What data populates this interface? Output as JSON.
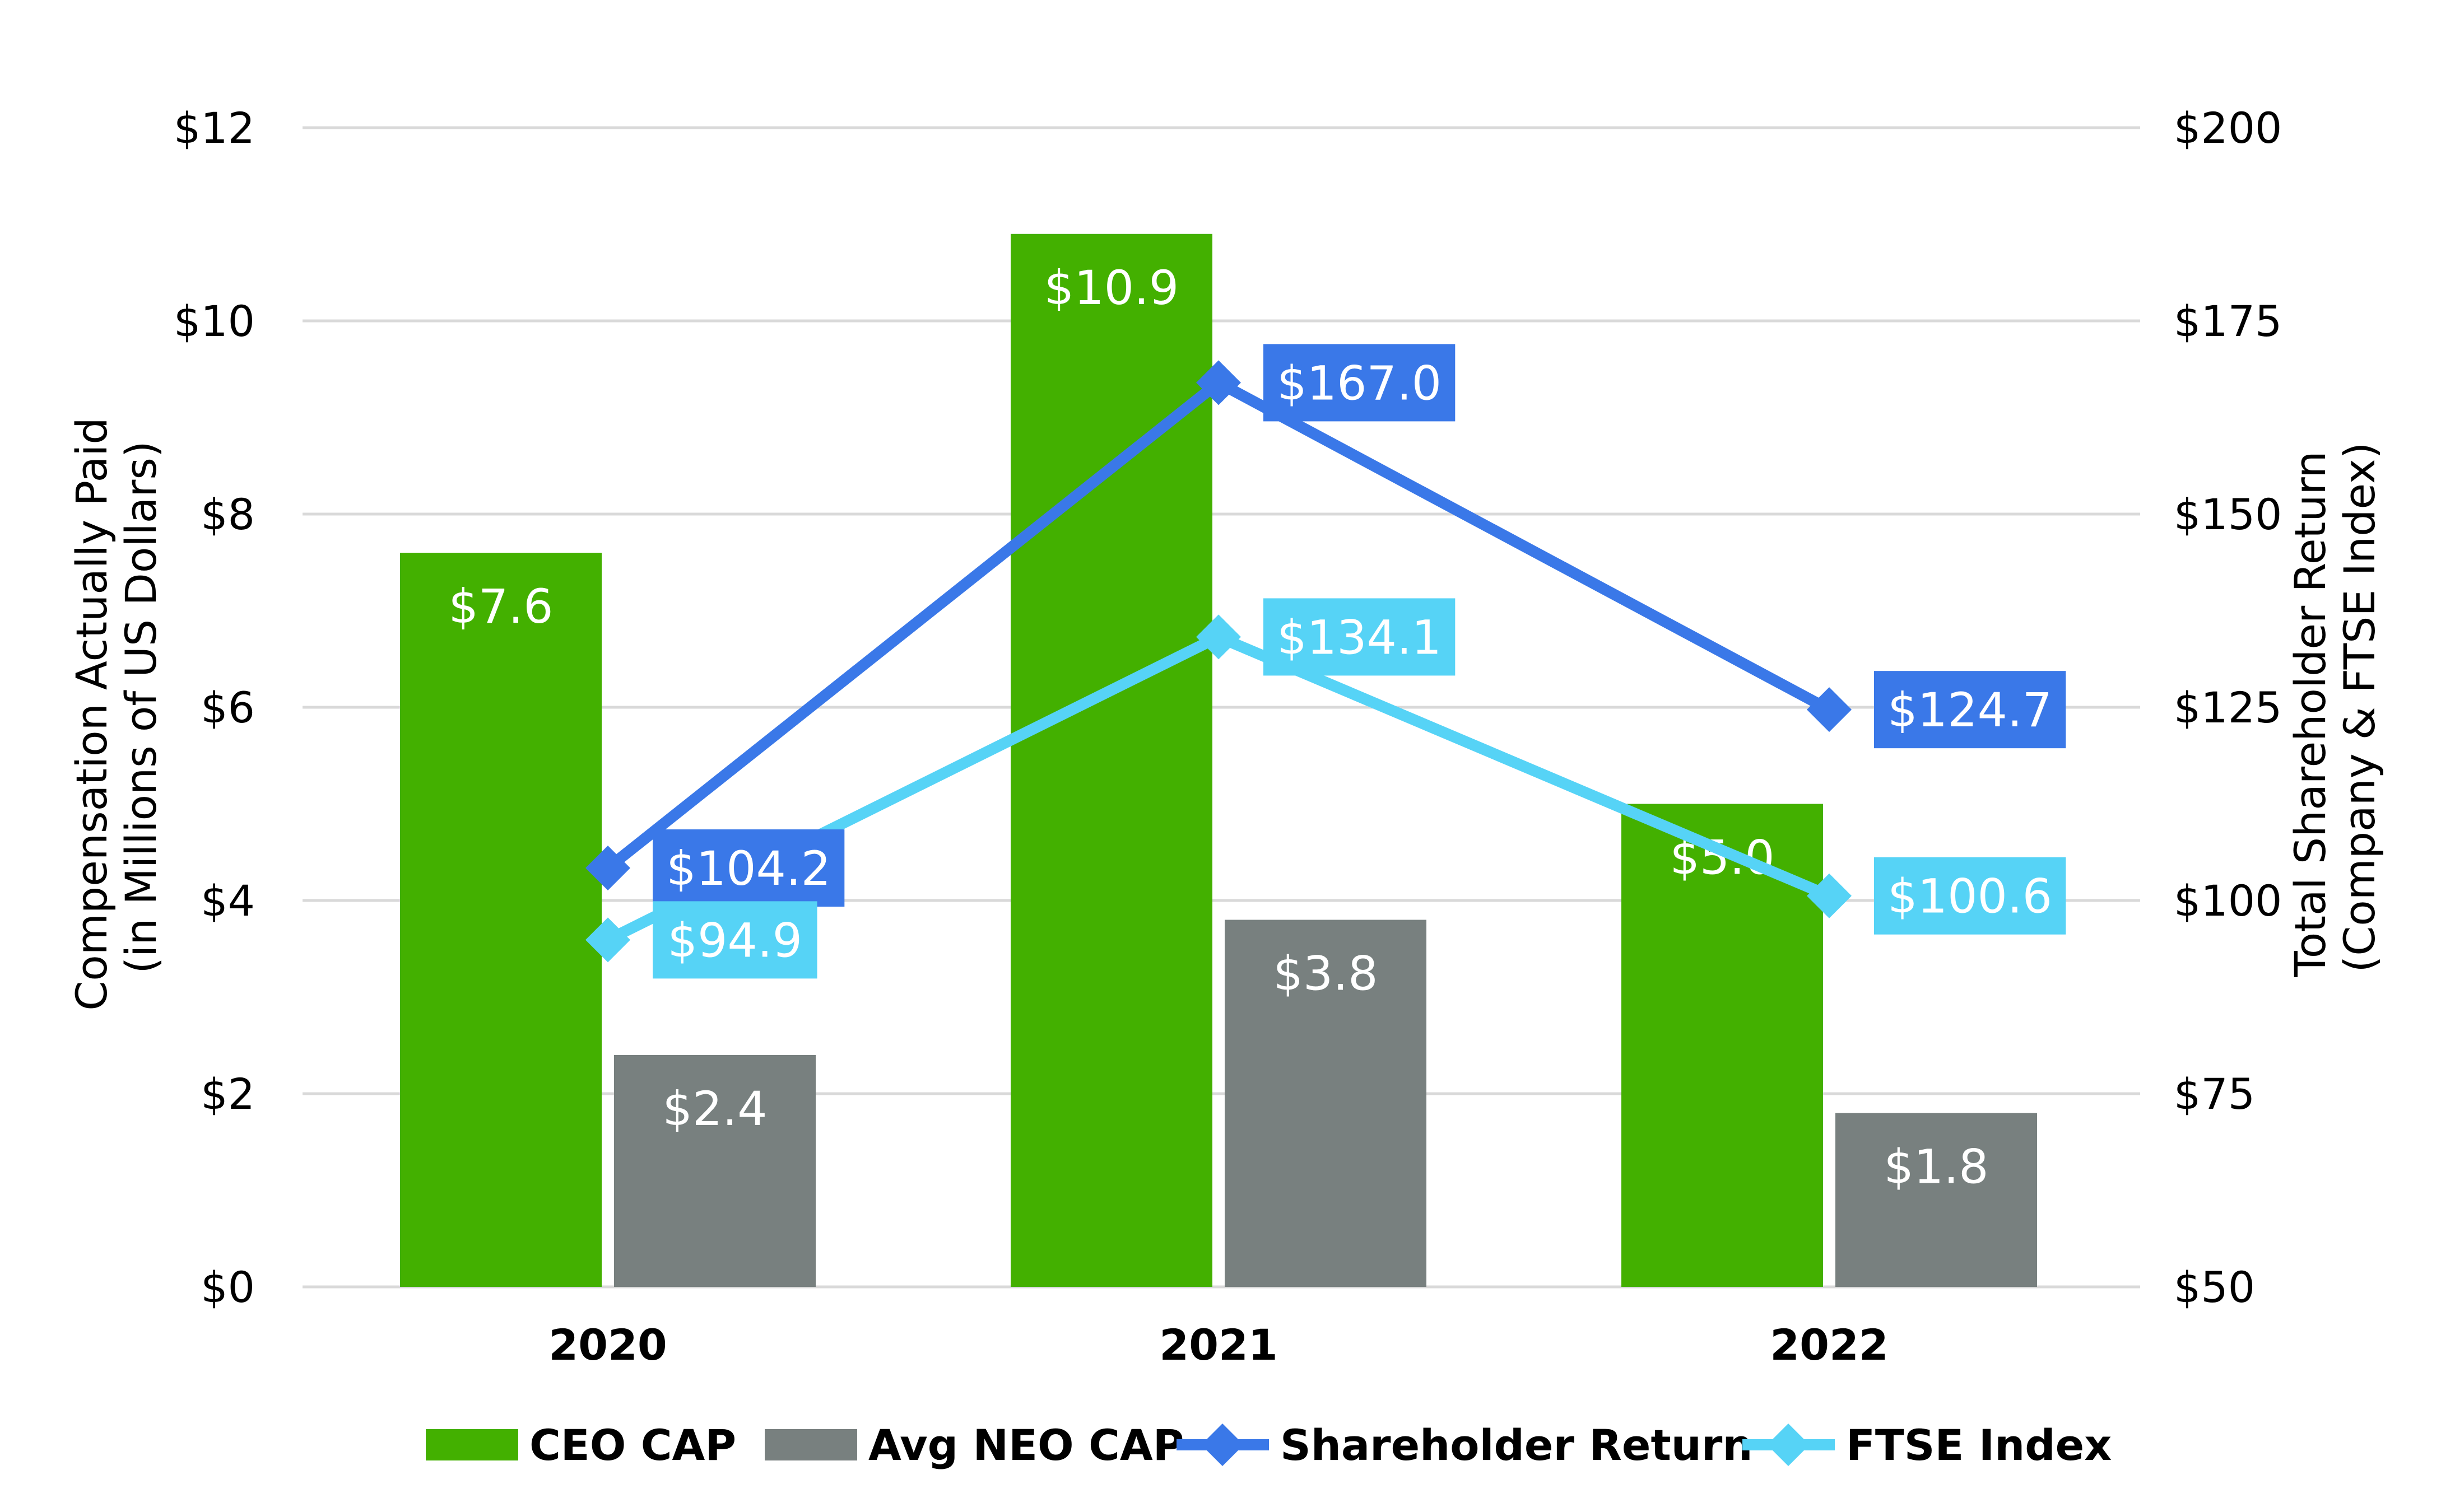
{
  "chart_data": {
    "type": "bar",
    "title": "",
    "categories": [
      "2020",
      "2021",
      "2022"
    ],
    "y_left": {
      "label_lines": [
        "Compensation Actually Paid",
        "(in Millions of US Dollars)"
      ],
      "ylim": [
        0,
        12
      ],
      "ticks": [
        0,
        2,
        4,
        6,
        8,
        10,
        12
      ],
      "tick_labels": [
        "$0",
        "$2",
        "$4",
        "$6",
        "$8",
        "$10",
        "$12"
      ]
    },
    "y_right": {
      "label_lines": [
        "Total Shareholder Return",
        "(Company & FTSE Index)"
      ],
      "ylim": [
        50,
        200
      ],
      "ticks": [
        50,
        75,
        100,
        125,
        150,
        175,
        200
      ],
      "tick_labels": [
        "$50",
        "$75",
        "$100",
        "$125",
        "$150",
        "$175",
        "$200"
      ]
    },
    "grid": true,
    "legend_position": "bottom",
    "series": [
      {
        "name": "CEO CAP",
        "kind": "bar",
        "axis": "left",
        "color": "#43B000",
        "values": [
          7.6,
          10.9,
          5.0
        ],
        "labels": [
          "$7.6",
          "$10.9",
          "$5.0"
        ]
      },
      {
        "name": "Avg NEO CAP",
        "kind": "bar",
        "axis": "left",
        "color": "#78807F",
        "values": [
          2.4,
          3.8,
          1.8
        ],
        "labels": [
          "$2.4",
          "$3.8",
          "$1.8"
        ]
      },
      {
        "name": "Shareholder Return",
        "kind": "line",
        "axis": "right",
        "color": "#3A78E8",
        "label_bg": "#3A78E8",
        "values": [
          104.2,
          167.0,
          124.7
        ],
        "labels": [
          "$104.2",
          "$167.0",
          "$124.7"
        ]
      },
      {
        "name": "FTSE Index",
        "kind": "line",
        "axis": "right",
        "color": "#56D3F6",
        "label_bg": "#56D3F6",
        "values": [
          94.9,
          134.1,
          100.6
        ],
        "labels": [
          "$94.9",
          "$134.1",
          "$100.6"
        ]
      }
    ]
  }
}
